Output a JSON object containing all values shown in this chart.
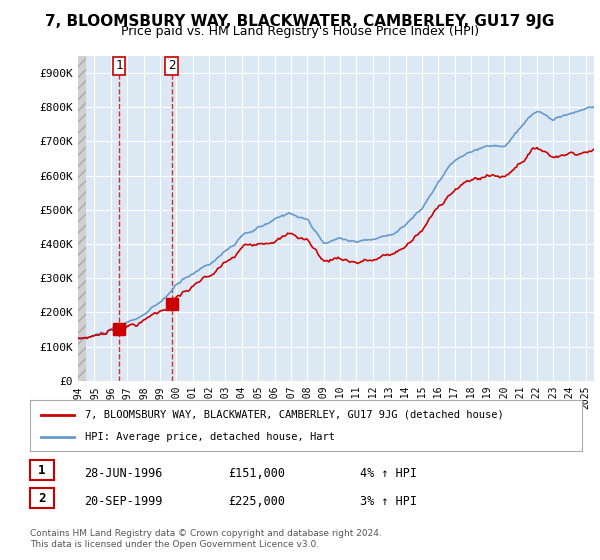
{
  "title": "7, BLOOMSBURY WAY, BLACKWATER, CAMBERLEY, GU17 9JG",
  "subtitle": "Price paid vs. HM Land Registry's House Price Index (HPI)",
  "ylabel": "",
  "xlabel": "",
  "ylim": [
    0,
    950000
  ],
  "yticks": [
    0,
    100000,
    200000,
    300000,
    400000,
    500000,
    600000,
    700000,
    800000,
    900000
  ],
  "ytick_labels": [
    "£0",
    "£100K",
    "£200K",
    "£300K",
    "£400K",
    "£500K",
    "£600K",
    "£700K",
    "£800K",
    "£900K"
  ],
  "background_color": "#ffffff",
  "plot_bg_color": "#dce9f5",
  "hatch_bg_color": "#c0c0c0",
  "grid_color": "#ffffff",
  "sale1_date": 1996.49,
  "sale1_price": 151000,
  "sale1_label": "1",
  "sale2_date": 1999.72,
  "sale2_price": 225000,
  "sale2_label": "2",
  "hpi_line_color": "#6699cc",
  "sale_line_color": "#cc0000",
  "sale_marker_color": "#cc0000",
  "legend_items": [
    {
      "label": "7, BLOOMSBURY WAY, BLACKWATER, CAMBERLEY, GU17 9JG (detached house)",
      "color": "#cc0000"
    },
    {
      "label": "HPI: Average price, detached house, Hart",
      "color": "#6699cc"
    }
  ],
  "table_rows": [
    {
      "num": "1",
      "date": "28-JUN-1996",
      "price": "£151,000",
      "hpi": "4% ↑ HPI"
    },
    {
      "num": "2",
      "date": "20-SEP-1999",
      "price": "£225,000",
      "hpi": "3% ↑ HPI"
    }
  ],
  "footer": "Contains HM Land Registry data © Crown copyright and database right 2024.\nThis data is licensed under the Open Government Licence v3.0.",
  "xmin": 1994,
  "xmax": 2025.5
}
